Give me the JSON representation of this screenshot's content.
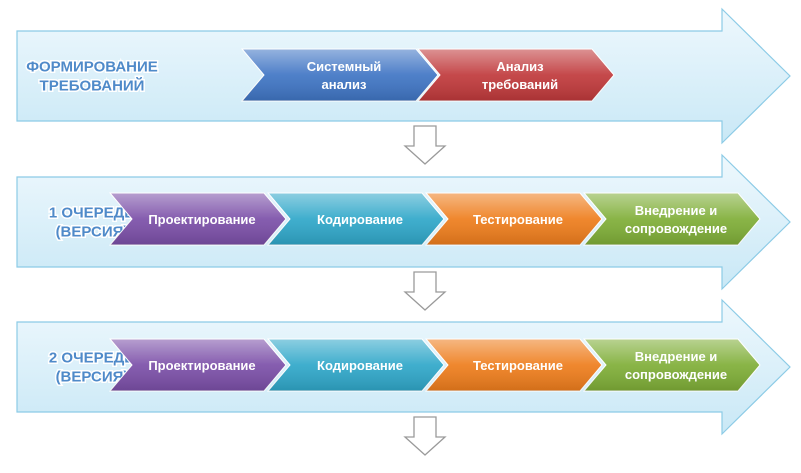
{
  "stages": [
    {
      "label_lines": [
        "ФОРМИРОВАНИЕ",
        "ТРЕБОВАНИЙ"
      ],
      "steps": [
        {
          "lines": [
            "Системный",
            "анализ"
          ],
          "color": "#3f75c4"
        },
        {
          "lines": [
            "Анализ",
            "требований"
          ],
          "color": "#c0393b"
        }
      ]
    },
    {
      "label_lines": [
        "1 ОЧЕРЕДЬ",
        "(ВЕРСИЯ)"
      ],
      "steps": [
        {
          "lines": [
            "Проектирование"
          ],
          "color": "#7b4fa8"
        },
        {
          "lines": [
            "Кодирование"
          ],
          "color": "#2fa7c9"
        },
        {
          "lines": [
            "Тестирование"
          ],
          "color": "#ee7d1c"
        },
        {
          "lines": [
            "Внедрение и",
            "сопровождение"
          ],
          "color": "#7fae37"
        }
      ]
    },
    {
      "label_lines": [
        "2 ОЧЕРЕДЬ",
        "(ВЕРСИЯ)"
      ],
      "steps": [
        {
          "lines": [
            "Проектирование"
          ],
          "color": "#7b4fa8"
        },
        {
          "lines": [
            "Кодирование"
          ],
          "color": "#2fa7c9"
        },
        {
          "lines": [
            "Тестирование"
          ],
          "color": "#ee7d1c"
        },
        {
          "lines": [
            "Внедрение и",
            "сопровождение"
          ],
          "color": "#7fae37"
        }
      ]
    }
  ],
  "colors": {
    "band_fill": "#d6eef8",
    "band_stroke": "#8ccbe6",
    "label_text": "#4f8ac9",
    "down_arrow_fill": "#ffffff",
    "down_arrow_stroke": "#9a9a9a"
  }
}
